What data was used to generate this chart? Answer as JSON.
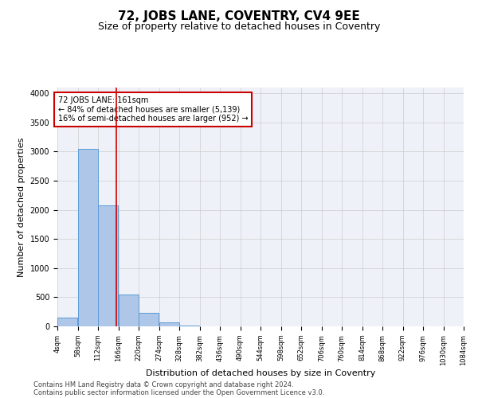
{
  "title": "72, JOBS LANE, COVENTRY, CV4 9EE",
  "subtitle": "Size of property relative to detached houses in Coventry",
  "xlabel": "Distribution of detached houses by size in Coventry",
  "ylabel": "Number of detached properties",
  "footnote1": "Contains HM Land Registry data © Crown copyright and database right 2024.",
  "footnote2": "Contains public sector information licensed under the Open Government Licence v3.0.",
  "annotation_line1": "72 JOBS LANE: 161sqm",
  "annotation_line2": "← 84% of detached houses are smaller (5,139)",
  "annotation_line3": "16% of semi-detached houses are larger (952) →",
  "property_size": 161,
  "bar_edges": [
    4,
    58,
    112,
    166,
    220,
    274,
    328,
    382,
    436,
    490,
    544,
    598,
    652,
    706,
    760,
    814,
    868,
    922,
    976,
    1030,
    1084
  ],
  "bar_heights": [
    150,
    3050,
    2080,
    540,
    230,
    65,
    20,
    5,
    2,
    2,
    1,
    0,
    0,
    0,
    0,
    0,
    0,
    0,
    0,
    0
  ],
  "bar_color": "#aec6e8",
  "bar_edge_color": "#5b9bd5",
  "vline_color": "#cc0000",
  "vline_x": 161,
  "ylim": [
    0,
    4100
  ],
  "yticks": [
    0,
    500,
    1000,
    1500,
    2000,
    2500,
    3000,
    3500,
    4000
  ],
  "annotation_box_color": "#cc0000",
  "annotation_text_color": "#000000",
  "grid_color": "#cccccc",
  "bg_color": "#eef2f8",
  "title_fontsize": 11,
  "subtitle_fontsize": 9,
  "tick_fontsize": 7,
  "label_fontsize": 8,
  "footnote_fontsize": 6
}
